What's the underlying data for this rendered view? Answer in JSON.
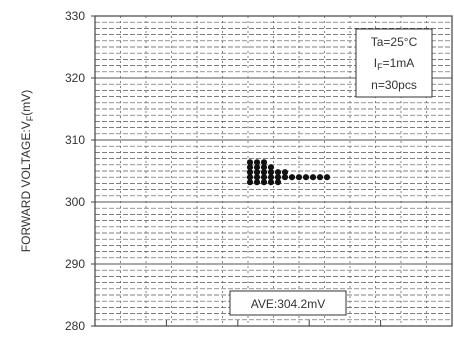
{
  "chart_data": {
    "type": "scatter",
    "title": "",
    "xlabel": "",
    "ylabel": "FORWARD VOLTAGE:V",
    "ylabel_sub": "F",
    "ylabel_unit": "(mV)",
    "ylim": [
      280,
      330
    ],
    "yticks": [
      330,
      320,
      310,
      300,
      290,
      280
    ],
    "grid": true,
    "legend_position": "top-right",
    "conditions": {
      "temperature": "Ta=25°C",
      "current_prefix": "I",
      "current_sub": "F",
      "current_value": "=1mA",
      "count": "n=30pcs"
    },
    "average_label": "AVE:304.2mV",
    "series": [
      {
        "points": [
          {
            "col": 0,
            "y": 303.2
          },
          {
            "col": 0,
            "y": 304.0
          },
          {
            "col": 0,
            "y": 304.8
          },
          {
            "col": 0,
            "y": 305.6
          },
          {
            "col": 0,
            "y": 306.4
          },
          {
            "col": 1,
            "y": 303.2
          },
          {
            "col": 1,
            "y": 304.0
          },
          {
            "col": 1,
            "y": 304.8
          },
          {
            "col": 1,
            "y": 305.6
          },
          {
            "col": 1,
            "y": 306.4
          },
          {
            "col": 2,
            "y": 303.2
          },
          {
            "col": 2,
            "y": 304.0
          },
          {
            "col": 2,
            "y": 304.8
          },
          {
            "col": 2,
            "y": 305.6
          },
          {
            "col": 2,
            "y": 306.4
          },
          {
            "col": 3,
            "y": 303.2
          },
          {
            "col": 3,
            "y": 304.0
          },
          {
            "col": 3,
            "y": 304.8
          },
          {
            "col": 3,
            "y": 305.6
          },
          {
            "col": 4,
            "y": 303.2
          },
          {
            "col": 4,
            "y": 304.0
          },
          {
            "col": 4,
            "y": 304.8
          },
          {
            "col": 5,
            "y": 304.0
          },
          {
            "col": 5,
            "y": 304.8
          },
          {
            "col": 6,
            "y": 304.0
          },
          {
            "col": 7,
            "y": 304.0
          },
          {
            "col": 8,
            "y": 304.0
          },
          {
            "col": 9,
            "y": 304.0
          },
          {
            "col": 10,
            "y": 304.0
          },
          {
            "col": 11,
            "y": 304.0
          }
        ]
      }
    ]
  },
  "colors": {
    "axis": "#444444",
    "grid": "#555555",
    "marker": "#111111",
    "text": "#333333"
  }
}
